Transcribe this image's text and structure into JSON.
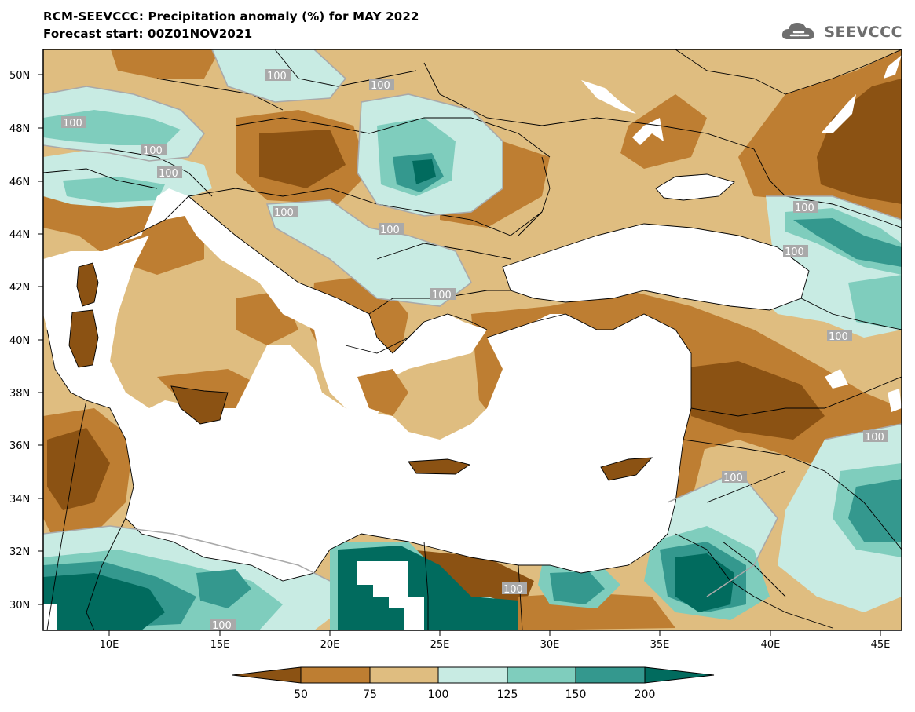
{
  "title": {
    "line1": "RCM-SEEVCCC: Precipitation anomaly (%) for MAY 2022",
    "line2": "Forecast start: 00Z01NOV2021"
  },
  "logo": {
    "text": "SEEVCCC",
    "icon": "cloud-icon"
  },
  "axes": {
    "lat_labels": [
      "50N",
      "48N",
      "46N",
      "44N",
      "42N",
      "40N",
      "38N",
      "36N",
      "34N",
      "32N",
      "30N"
    ],
    "lon_labels": [
      "10E",
      "15E",
      "20E",
      "25E",
      "30E",
      "35E",
      "40E",
      "45E"
    ]
  },
  "contour_label": "100",
  "colorbar": {
    "labels": [
      "50",
      "75",
      "100",
      "125",
      "150",
      "200"
    ],
    "colors": [
      "#8b5213",
      "#be7e32",
      "#dfbd80",
      "#c8ebe3",
      "#7fcdbd",
      "#34988e",
      "#016b5e"
    ]
  }
}
